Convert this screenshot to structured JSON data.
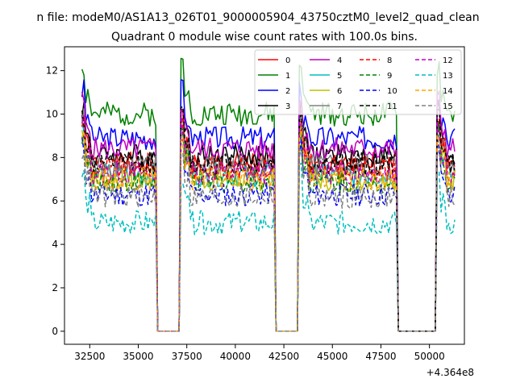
{
  "chart_data": {
    "type": "line",
    "suptitle": "n file: modeM0/AS1A13_026T01_9000005904_43750cztM0_level2_quad_clean",
    "title": "Quadrant 0 module wise count rates with 100.0s bins.",
    "xlabel": "",
    "ylabel": "",
    "x_offset_label": "+4.364e8",
    "xlim": [
      31200,
      51800
    ],
    "ylim": [
      -0.6,
      13.1
    ],
    "x_ticks": [
      32500,
      35000,
      37500,
      40000,
      42500,
      45000,
      47500,
      50000
    ],
    "x_tick_labels": [
      "32500",
      "35000",
      "37500",
      "40000",
      "42500",
      "45000",
      "47500",
      "50000"
    ],
    "y_ticks": [
      0,
      2,
      4,
      6,
      8,
      10,
      12
    ],
    "y_tick_labels": [
      "0",
      "2",
      "4",
      "6",
      "8",
      "10",
      "12"
    ],
    "grid": false,
    "legend_placement": "top-right",
    "legend_columns": 4,
    "x_start": 32100,
    "bin_s": 100,
    "segments": [
      [
        32100,
        35900
      ],
      [
        37200,
        42000
      ],
      [
        43300,
        48300
      ],
      [
        50400,
        51300
      ]
    ],
    "gap_edge_zero": [
      [
        36000,
        37000
      ],
      [
        42100,
        43200
      ],
      [
        48400,
        50300
      ]
    ],
    "series": [
      {
        "name": "0",
        "color": "#ff0000",
        "dashed": false,
        "level": 7.7
      },
      {
        "name": "1",
        "color": "#008000",
        "dashed": false,
        "level": 10.0
      },
      {
        "name": "2",
        "color": "#0000ff",
        "dashed": false,
        "level": 8.9
      },
      {
        "name": "3",
        "color": "#000000",
        "dashed": false,
        "level": 8.1
      },
      {
        "name": "4",
        "color": "#bf00bf",
        "dashed": false,
        "level": 8.4
      },
      {
        "name": "5",
        "color": "#00bfbf",
        "dashed": false,
        "level": 7.2
      },
      {
        "name": "6",
        "color": "#bfbf00",
        "dashed": false,
        "level": 7.0
      },
      {
        "name": "7",
        "color": "#808080",
        "dashed": false,
        "level": 7.6
      },
      {
        "name": "8",
        "color": "#ff0000",
        "dashed": true,
        "level": 7.5
      },
      {
        "name": "9",
        "color": "#008000",
        "dashed": true,
        "level": 6.9
      },
      {
        "name": "10",
        "color": "#0000ff",
        "dashed": true,
        "level": 6.3
      },
      {
        "name": "11",
        "color": "#000000",
        "dashed": true,
        "level": 7.7
      },
      {
        "name": "12",
        "color": "#bf00bf",
        "dashed": true,
        "level": 7.3
      },
      {
        "name": "13",
        "color": "#00bfbf",
        "dashed": true,
        "level": 5.0
      },
      {
        "name": "14",
        "color": "#ffa500",
        "dashed": true,
        "level": 7.0
      },
      {
        "name": "15",
        "color": "#808080",
        "dashed": true,
        "level": 6.2
      }
    ]
  }
}
